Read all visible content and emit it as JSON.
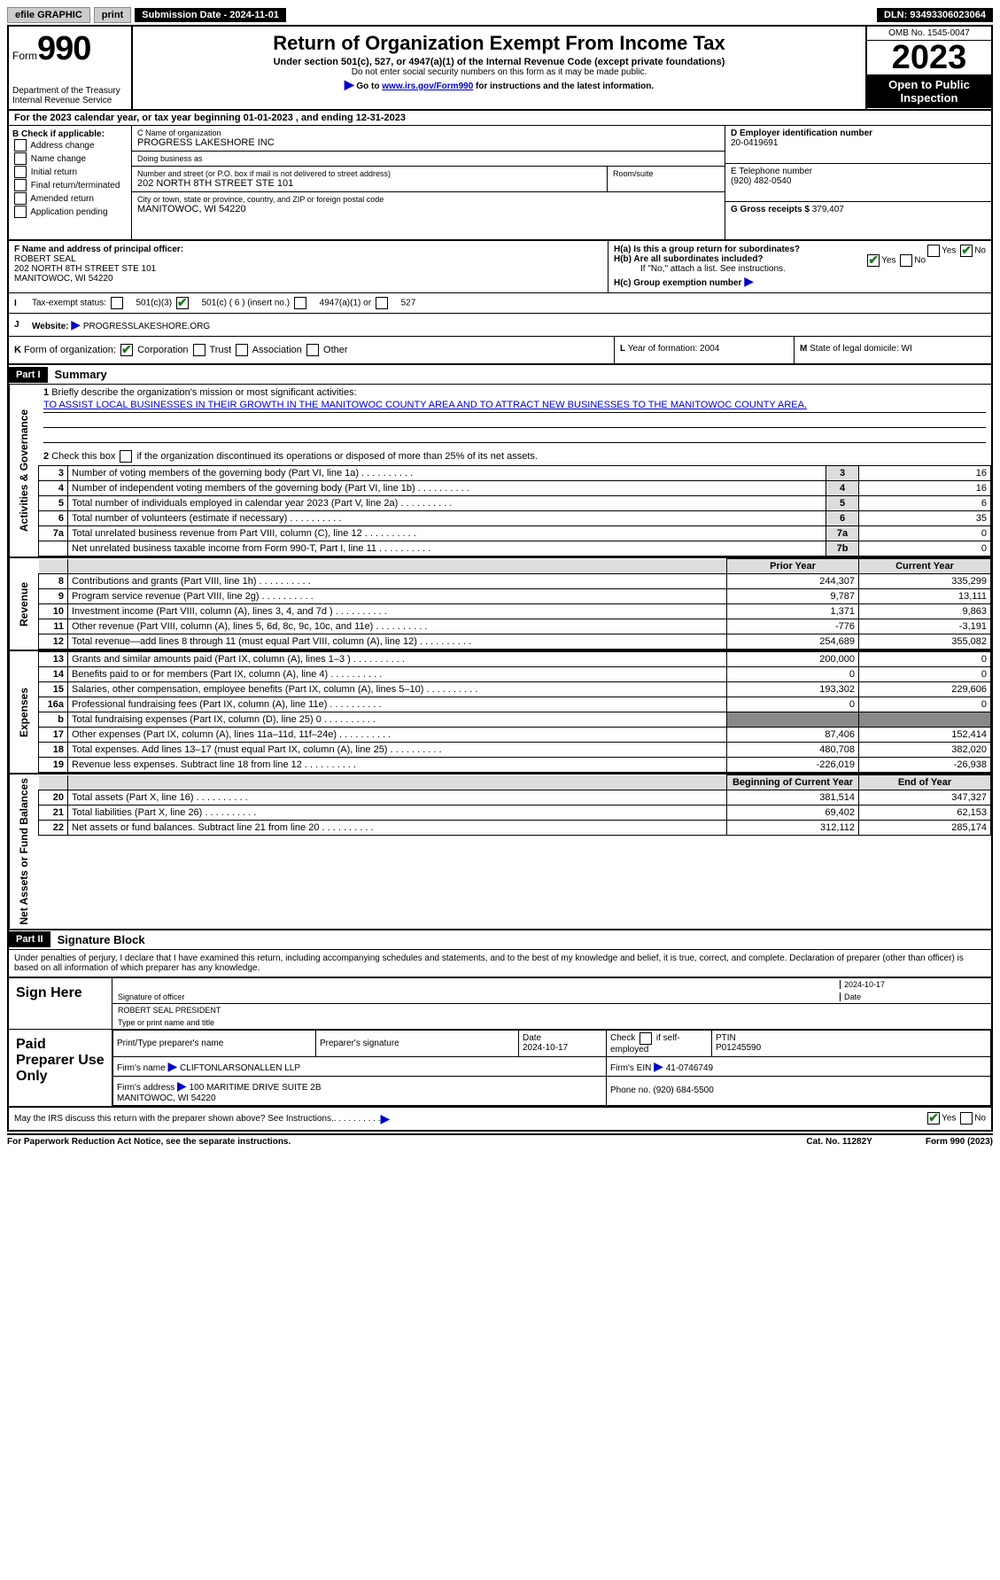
{
  "topbar": {
    "efile": "efile GRAPHIC",
    "print": "print",
    "submission": "Submission Date - 2024-11-01",
    "dln": "DLN: 93493306023064"
  },
  "header": {
    "form_prefix": "Form",
    "form_no": "990",
    "title": "Return of Organization Exempt From Income Tax",
    "subtitle": "Under section 501(c), 527, or 4947(a)(1) of the Internal Revenue Code (except private foundations)",
    "note1": "Do not enter social security numbers on this form as it may be made public.",
    "note2_prefix": "Go to ",
    "note2_link": "www.irs.gov/Form990",
    "note2_suffix": " for instructions and the latest information.",
    "dept": "Department of the Treasury\nInternal Revenue Service",
    "omb": "OMB No. 1545-0047",
    "year": "2023",
    "public": "Open to Public Inspection"
  },
  "period": "For the 2023 calendar year, or tax year beginning 01-01-2023    , and ending 12-31-2023",
  "box_b": {
    "title": "B Check if applicable:",
    "items": [
      "Address change",
      "Name change",
      "Initial return",
      "Final return/terminated",
      "Amended return",
      "Application pending"
    ]
  },
  "box_c": {
    "name_label": "C Name of organization",
    "name": "PROGRESS LAKESHORE INC",
    "dba_label": "Doing business as",
    "dba": "",
    "street_label": "Number and street (or P.O. box if mail is not delivered to street address)",
    "street": "202 NORTH 8TH STREET STE 101",
    "suite_label": "Room/suite",
    "city_label": "City or town, state or province, country, and ZIP or foreign postal code",
    "city": "MANITOWOC, WI  54220"
  },
  "box_d": {
    "ein_label": "D Employer identification number",
    "ein": "20-0419691",
    "phone_label": "E Telephone number",
    "phone": "(920) 482-0540",
    "gross_label": "G Gross receipts $",
    "gross": "379,407"
  },
  "box_f": {
    "label": "F  Name and address of principal officer:",
    "name": "ROBERT SEAL",
    "addr1": "202 NORTH 8TH STREET STE 101",
    "addr2": "MANITOWOC, WI  54220"
  },
  "box_h": {
    "ha": "H(a)  Is this a group return for subordinates?",
    "hb": "H(b)  Are all subordinates included?",
    "hb_note": "If \"No,\" attach a list. See instructions.",
    "hc": "H(c)  Group exemption number",
    "yes": "Yes",
    "no": "No"
  },
  "row_i": {
    "label": "I",
    "text": "Tax-exempt status:",
    "opts": [
      "501(c)(3)",
      "501(c) ( 6 ) (insert no.)",
      "4947(a)(1) or",
      "527"
    ]
  },
  "row_j": {
    "label": "J",
    "text": "Website:",
    "value": "PROGRESSLAKESHORE.ORG"
  },
  "row_k": {
    "label": "K",
    "text": "Form of organization:",
    "opts": [
      "Corporation",
      "Trust",
      "Association",
      "Other"
    ]
  },
  "row_l": {
    "label": "L",
    "text": "Year of formation: 2004"
  },
  "row_m": {
    "label": "M",
    "text": "State of legal domicile: WI"
  },
  "part1": {
    "header": "Part I",
    "title": "Summary",
    "line1_label": "1",
    "line1_text": "Briefly describe the organization's mission or most significant activities:",
    "mission": "TO ASSIST LOCAL BUSINESSES IN THEIR GROWTH IN THE MANITOWOC COUNTY AREA AND TO ATTRACT NEW BUSINESSES TO THE MANITOWOC COUNTY AREA.",
    "line2_label": "2",
    "line2_text": "Check this box        if the organization discontinued its operations or disposed of more than 25% of its net assets.",
    "sections": {
      "gov": "Activities & Governance",
      "rev": "Revenue",
      "exp": "Expenses",
      "net": "Net Assets or Fund Balances"
    },
    "gov_rows": [
      {
        "n": "3",
        "d": "Number of voting members of the governing body (Part VI, line 1a)",
        "b": "3",
        "v": "16"
      },
      {
        "n": "4",
        "d": "Number of independent voting members of the governing body (Part VI, line 1b)",
        "b": "4",
        "v": "16"
      },
      {
        "n": "5",
        "d": "Total number of individuals employed in calendar year 2023 (Part V, line 2a)",
        "b": "5",
        "v": "6"
      },
      {
        "n": "6",
        "d": "Total number of volunteers (estimate if necessary)",
        "b": "6",
        "v": "35"
      },
      {
        "n": "7a",
        "d": "Total unrelated business revenue from Part VIII, column (C), line 12",
        "b": "7a",
        "v": "0"
      },
      {
        "n": "",
        "d": "Net unrelated business taxable income from Form 990-T, Part I, line 11",
        "b": "7b",
        "v": "0"
      }
    ],
    "twocol_header": {
      "prior": "Prior Year",
      "current": "Current Year",
      "begin": "Beginning of Current Year",
      "end": "End of Year"
    },
    "rev_rows": [
      {
        "n": "8",
        "d": "Contributions and grants (Part VIII, line 1h)",
        "p": "244,307",
        "c": "335,299"
      },
      {
        "n": "9",
        "d": "Program service revenue (Part VIII, line 2g)",
        "p": "9,787",
        "c": "13,111"
      },
      {
        "n": "10",
        "d": "Investment income (Part VIII, column (A), lines 3, 4, and 7d )",
        "p": "1,371",
        "c": "9,863"
      },
      {
        "n": "11",
        "d": "Other revenue (Part VIII, column (A), lines 5, 6d, 8c, 9c, 10c, and 11e)",
        "p": "-776",
        "c": "-3,191"
      },
      {
        "n": "12",
        "d": "Total revenue—add lines 8 through 11 (must equal Part VIII, column (A), line 12)",
        "p": "254,689",
        "c": "355,082"
      }
    ],
    "exp_rows": [
      {
        "n": "13",
        "d": "Grants and similar amounts paid (Part IX, column (A), lines 1–3 )",
        "p": "200,000",
        "c": "0"
      },
      {
        "n": "14",
        "d": "Benefits paid to or for members (Part IX, column (A), line 4)",
        "p": "0",
        "c": "0"
      },
      {
        "n": "15",
        "d": "Salaries, other compensation, employee benefits (Part IX, column (A), lines 5–10)",
        "p": "193,302",
        "c": "229,606"
      },
      {
        "n": "16a",
        "d": "Professional fundraising fees (Part IX, column (A), line 11e)",
        "p": "0",
        "c": "0"
      },
      {
        "n": "b",
        "d": "Total fundraising expenses (Part IX, column (D), line 25) 0",
        "p": "",
        "c": "",
        "grey": true
      },
      {
        "n": "17",
        "d": "Other expenses (Part IX, column (A), lines 11a–11d, 11f–24e)",
        "p": "87,406",
        "c": "152,414"
      },
      {
        "n": "18",
        "d": "Total expenses. Add lines 13–17 (must equal Part IX, column (A), line 25)",
        "p": "480,708",
        "c": "382,020"
      },
      {
        "n": "19",
        "d": "Revenue less expenses. Subtract line 18 from line 12",
        "p": "-226,019",
        "c": "-26,938"
      }
    ],
    "net_rows": [
      {
        "n": "20",
        "d": "Total assets (Part X, line 16)",
        "p": "381,514",
        "c": "347,327"
      },
      {
        "n": "21",
        "d": "Total liabilities (Part X, line 26)",
        "p": "69,402",
        "c": "62,153"
      },
      {
        "n": "22",
        "d": "Net assets or fund balances. Subtract line 21 from line 20",
        "p": "312,112",
        "c": "285,174"
      }
    ]
  },
  "part2": {
    "header": "Part II",
    "title": "Signature Block",
    "declaration": "Under penalties of perjury, I declare that I have examined this return, including accompanying schedules and statements, and to the best of my knowledge and belief, it is true, correct, and complete. Declaration of preparer (other than officer) is based on all information of which preparer has any knowledge.",
    "sign_here": "Sign Here",
    "sig_officer_label": "Signature of officer",
    "sig_date": "2024-10-17",
    "date_label": "Date",
    "officer_name": "ROBERT SEAL PRESIDENT",
    "officer_name_label": "Type or print name and title",
    "paid": "Paid Preparer Use Only",
    "prep_name_label": "Print/Type preparer's name",
    "prep_sig_label": "Preparer's signature",
    "prep_date_label": "Date",
    "prep_date": "2024-10-17",
    "check_if": "Check        if self-employed",
    "ptin_label": "PTIN",
    "ptin": "P01245590",
    "firm_name_label": "Firm's name",
    "firm_name": "CLIFTONLARSONALLEN LLP",
    "firm_ein_label": "Firm's EIN",
    "firm_ein": "41-0746749",
    "firm_addr_label": "Firm's address",
    "firm_addr": "100 MARITIME DRIVE SUITE 2B\nMANITOWOC, WI  54220",
    "firm_phone_label": "Phone no.",
    "firm_phone": "(920) 684-5500",
    "discuss": "May the IRS discuss this return with the preparer shown above? See Instructions.",
    "yes": "Yes",
    "no": "No"
  },
  "footer": {
    "left": "For Paperwork Reduction Act Notice, see the separate instructions.",
    "mid": "Cat. No. 11282Y",
    "right": "Form 990 (2023)"
  }
}
